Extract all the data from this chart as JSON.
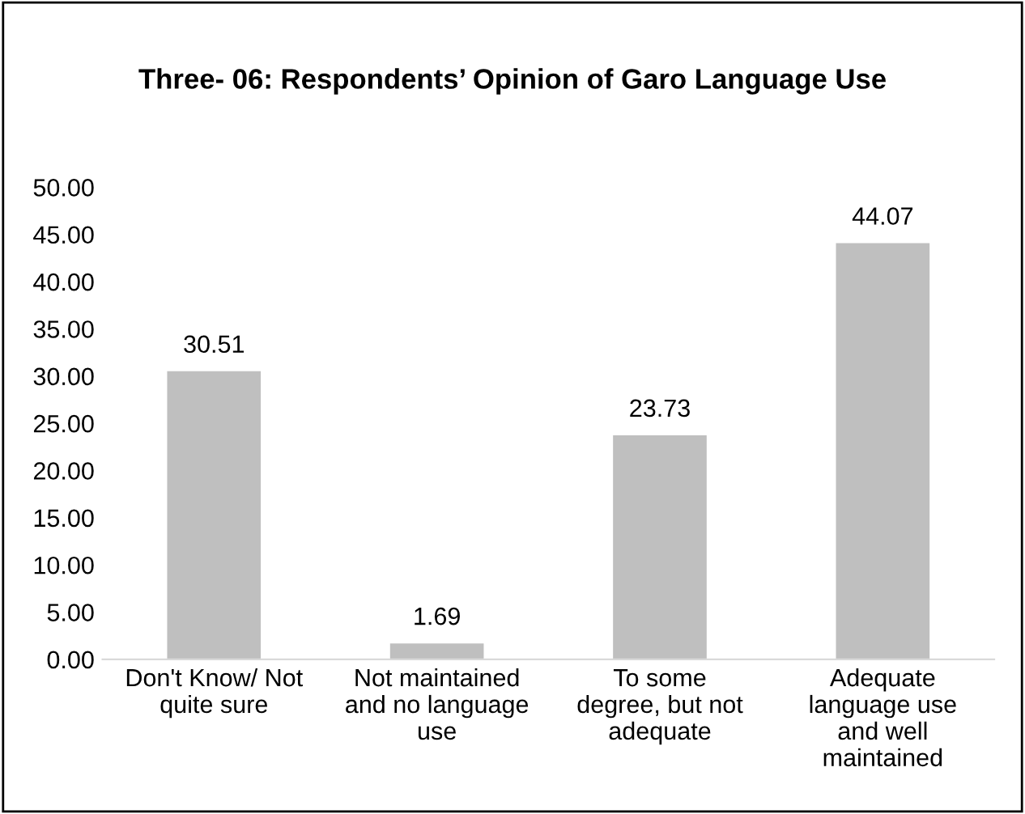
{
  "chart_data": {
    "type": "bar",
    "title": "Three- 06: Respondents’ Opinion of Garo Language Use",
    "categories": [
      "Don't Know/ Not\nquite sure",
      "Not maintained\nand no language\nuse",
      "To some\ndegree, but not\nadequate",
      "Adequate\nlanguage use\nand well\nmaintained"
    ],
    "values": [
      30.51,
      1.69,
      23.73,
      44.07
    ],
    "color": "#bfbfbf",
    "ylim": [
      0,
      50
    ],
    "yticks": [
      {
        "value": 0,
        "label": "0.00"
      },
      {
        "value": 5,
        "label": "5.00"
      },
      {
        "value": 10,
        "label": "10.00"
      },
      {
        "value": 15,
        "label": "15.00"
      },
      {
        "value": 20,
        "label": "20.00"
      },
      {
        "value": 25,
        "label": "25.00"
      },
      {
        "value": 30,
        "label": "30.00"
      },
      {
        "value": 35,
        "label": "35.00"
      },
      {
        "value": 40,
        "label": "40.00"
      },
      {
        "value": 45,
        "label": "45.00"
      },
      {
        "value": 50,
        "label": "50.00"
      }
    ],
    "data_labels": true,
    "grid": false,
    "legend": false
  }
}
